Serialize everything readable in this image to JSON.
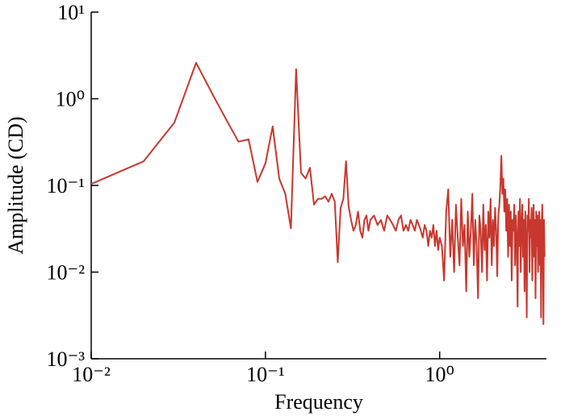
{
  "chart_data": {
    "type": "line",
    "x_label": "Frequency",
    "y_label": "Amplitude (CD)",
    "xscale": "log",
    "yscale": "log",
    "xlim": [
      0.01,
      4.1
    ],
    "ylim": [
      0.001,
      10
    ],
    "xticks": [
      {
        "value": 0.01,
        "label": "10⁻²"
      },
      {
        "value": 0.1,
        "label": "10⁻¹"
      },
      {
        "value": 1,
        "label": "10⁰"
      }
    ],
    "yticks": [
      {
        "value": 0.001,
        "label": "10⁻³"
      },
      {
        "value": 0.01,
        "label": "10⁻²"
      },
      {
        "value": 0.1,
        "label": "10⁻¹"
      },
      {
        "value": 1,
        "label": "10⁰"
      },
      {
        "value": 10,
        "label": "10¹"
      }
    ],
    "x": [
      0.01,
      0.02,
      0.03,
      0.04,
      0.05,
      0.06,
      0.07,
      0.08,
      0.09,
      0.1,
      0.11,
      0.12,
      0.13,
      0.14,
      0.15,
      0.16,
      0.17,
      0.18,
      0.19,
      0.2,
      0.21,
      0.22,
      0.23,
      0.24,
      0.25,
      0.26,
      0.27,
      0.28,
      0.29,
      0.3,
      0.31,
      0.32,
      0.33,
      0.34,
      0.35,
      0.36,
      0.37,
      0.38,
      0.39,
      0.4,
      0.42,
      0.44,
      0.46,
      0.48,
      0.5,
      0.52,
      0.54,
      0.56,
      0.58,
      0.6,
      0.62,
      0.64,
      0.66,
      0.68,
      0.7,
      0.72,
      0.74,
      0.76,
      0.78,
      0.8,
      0.82,
      0.84,
      0.86,
      0.88,
      0.9,
      0.92,
      0.94,
      0.96,
      0.98,
      1.0,
      1.03,
      1.06,
      1.09,
      1.12,
      1.15,
      1.18,
      1.21,
      1.24,
      1.27,
      1.3,
      1.33,
      1.36,
      1.39,
      1.42,
      1.45,
      1.48,
      1.51,
      1.54,
      1.57,
      1.6,
      1.63,
      1.66,
      1.69,
      1.72,
      1.75,
      1.78,
      1.81,
      1.84,
      1.87,
      1.9,
      1.93,
      1.96,
      1.99,
      2.02,
      2.05,
      2.08,
      2.11,
      2.14,
      2.17,
      2.2,
      2.23,
      2.26,
      2.29,
      2.32,
      2.35,
      2.38,
      2.41,
      2.44,
      2.47,
      2.5,
      2.53,
      2.56,
      2.59,
      2.62,
      2.65,
      2.68,
      2.71,
      2.74,
      2.77,
      2.8,
      2.83,
      2.86,
      2.89,
      2.92,
      2.95,
      2.98,
      3.01,
      3.04,
      3.07,
      3.1,
      3.13,
      3.16,
      3.19,
      3.22,
      3.25,
      3.28,
      3.31,
      3.34,
      3.37,
      3.4,
      3.43,
      3.46,
      3.49,
      3.52,
      3.55,
      3.58,
      3.61,
      3.64,
      3.67,
      3.7,
      3.73,
      3.76,
      3.79,
      3.82,
      3.85,
      3.88,
      3.91,
      3.94,
      3.97,
      4.0
    ],
    "series": [
      {
        "color": "#c8372d",
        "values": [
          0.104,
          0.19,
          0.53,
          2.6,
          1.1,
          0.56,
          0.32,
          0.34,
          0.11,
          0.18,
          0.48,
          0.12,
          0.08,
          0.032,
          2.2,
          0.14,
          0.12,
          0.16,
          0.06,
          0.07,
          0.07,
          0.075,
          0.065,
          0.08,
          0.065,
          0.013,
          0.055,
          0.07,
          0.19,
          0.058,
          0.04,
          0.03,
          0.035,
          0.05,
          0.03,
          0.025,
          0.04,
          0.045,
          0.03,
          0.04,
          0.045,
          0.035,
          0.04,
          0.03,
          0.045,
          0.04,
          0.035,
          0.03,
          0.04,
          0.045,
          0.03,
          0.035,
          0.03,
          0.04,
          0.035,
          0.03,
          0.04,
          0.035,
          0.03,
          0.025,
          0.035,
          0.03,
          0.02,
          0.03,
          0.025,
          0.035,
          0.02,
          0.03,
          0.018,
          0.025,
          0.02,
          0.008,
          0.05,
          0.09,
          0.015,
          0.04,
          0.01,
          0.06,
          0.025,
          0.012,
          0.07,
          0.02,
          0.035,
          0.006,
          0.05,
          0.015,
          0.03,
          0.08,
          0.012,
          0.04,
          0.02,
          0.005,
          0.045,
          0.03,
          0.01,
          0.06,
          0.018,
          0.035,
          0.008,
          0.05,
          0.025,
          0.07,
          0.012,
          0.04,
          0.02,
          0.055,
          0.03,
          0.009,
          0.045,
          0.06,
          0.1,
          0.22,
          0.08,
          0.12,
          0.05,
          0.09,
          0.03,
          0.07,
          0.015,
          0.06,
          0.02,
          0.05,
          0.008,
          0.04,
          0.03,
          0.06,
          0.012,
          0.045,
          0.025,
          0.004,
          0.05,
          0.02,
          0.07,
          0.01,
          0.035,
          0.06,
          0.015,
          0.04,
          0.006,
          0.05,
          0.02,
          0.003,
          0.045,
          0.03,
          0.07,
          0.01,
          0.04,
          0.025,
          0.055,
          0.008,
          0.035,
          0.06,
          0.015,
          0.04,
          0.005,
          0.05,
          0.02,
          0.045,
          0.01,
          0.03,
          0.05,
          0.012,
          0.04,
          0.003,
          0.035,
          0.06,
          0.02,
          0.0025,
          0.04,
          0.015
        ]
      }
    ]
  }
}
